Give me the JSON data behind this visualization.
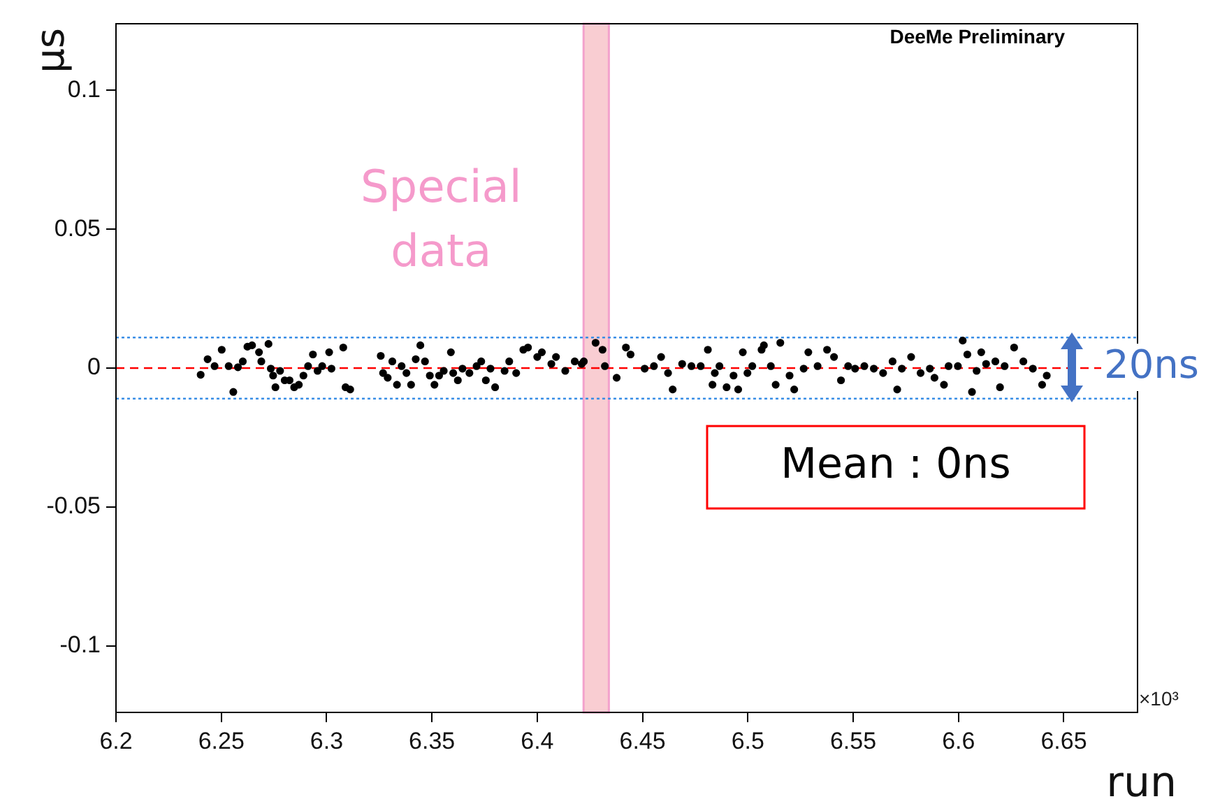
{
  "chart_data": {
    "type": "scatter",
    "xlabel": "run",
    "ylabel": "μs",
    "xlim": [
      6.2,
      6.685
    ],
    "xticks": [
      6.2,
      6.25,
      6.3,
      6.35,
      6.4,
      6.45,
      6.5,
      6.55,
      6.6,
      6.65
    ],
    "ylim": [
      -0.124,
      0.124
    ],
    "yticks": [
      -0.1,
      -0.05,
      0,
      0.05,
      0.1
    ],
    "grid": false,
    "legend": false,
    "marker": "circle",
    "series": [
      {
        "color": "#000000",
        "x": [
          6.2402,
          6.2435,
          6.2468,
          6.2502,
          6.2535,
          6.2557,
          6.2579,
          6.2602,
          6.2624,
          6.2646,
          6.2679,
          6.269,
          6.2724,
          6.2735,
          6.2746,
          6.2757,
          6.2779,
          6.2801,
          6.2824,
          6.2846,
          6.2868,
          6.289,
          6.2912,
          6.2935,
          6.2957,
          6.2979,
          6.3012,
          6.3023,
          6.3079,
          6.309,
          6.3112,
          6.3257,
          6.3268,
          6.329,
          6.3312,
          6.3334,
          6.3356,
          6.3379,
          6.3401,
          6.3423,
          6.3445,
          6.3467,
          6.349,
          6.3512,
          6.3534,
          6.3556,
          6.359,
          6.3601,
          6.3623,
          6.3645,
          6.3678,
          6.3712,
          6.3734,
          6.3756,
          6.3778,
          6.38,
          6.3845,
          6.3867,
          6.39,
          6.3934,
          6.3956,
          6.4,
          6.4022,
          6.4067,
          6.4089,
          6.4133,
          6.4178,
          6.4211,
          6.4221,
          6.4277,
          6.431,
          6.4321,
          6.4377,
          6.4421,
          6.4443,
          6.451,
          6.4554,
          6.4588,
          6.4621,
          6.4643,
          6.4688,
          6.4732,
          6.4776,
          6.481,
          6.4832,
          6.4843,
          6.4865,
          6.4899,
          6.4932,
          6.4954,
          6.4976,
          6.4998,
          6.5021,
          6.5065,
          6.5076,
          6.5109,
          6.5132,
          6.5154,
          6.5198,
          6.522,
          6.5265,
          6.5287,
          6.5331,
          6.5376,
          6.5409,
          6.5442,
          6.5476,
          6.5509,
          6.5553,
          6.5598,
          6.5642,
          6.5687,
          6.5709,
          6.5731,
          6.5775,
          6.582,
          6.5864,
          6.5886,
          6.5931,
          6.5953,
          6.5997,
          6.602,
          6.6042,
          6.6064,
          6.6086,
          6.6108,
          6.6131,
          6.6175,
          6.6197,
          6.6219,
          6.6264,
          6.6308,
          6.6353,
          6.6397,
          6.6419
        ],
        "values": [
          -0.0024,
          0.0032,
          0.0007,
          0.0066,
          0.0007,
          -0.0086,
          0.0003,
          0.0024,
          0.0077,
          0.0082,
          0.0057,
          0.0024,
          0.0087,
          -0.0002,
          -0.0027,
          -0.0069,
          -0.001,
          -0.0044,
          -0.0044,
          -0.0069,
          -0.006,
          -0.0027,
          0.0007,
          0.0049,
          -0.001,
          0.0007,
          0.0057,
          -0.0002,
          0.0074,
          -0.0069,
          -0.0077,
          0.0044,
          -0.0018,
          -0.0035,
          0.0024,
          -0.006,
          0.0007,
          -0.0018,
          -0.006,
          0.0032,
          0.0082,
          0.0024,
          -0.0027,
          -0.006,
          -0.0027,
          -0.001,
          0.0057,
          -0.0018,
          -0.0044,
          -0.0002,
          -0.0018,
          0.0007,
          0.0024,
          -0.0044,
          -0.0002,
          -0.0069,
          -0.001,
          0.0024,
          -0.0018,
          0.0066,
          0.0074,
          0.004,
          0.0057,
          0.0015,
          0.004,
          -0.001,
          0.0024,
          0.0015,
          0.0024,
          0.0091,
          0.0066,
          0.0007,
          -0.0035,
          0.0074,
          0.0049,
          -0.0002,
          0.0007,
          0.004,
          -0.0018,
          -0.0077,
          0.0015,
          0.0007,
          0.0007,
          0.0066,
          -0.006,
          -0.0018,
          0.0007,
          -0.0069,
          -0.0027,
          -0.0077,
          0.0057,
          -0.0018,
          0.0007,
          0.0066,
          0.0082,
          0.0007,
          -0.006,
          0.0091,
          -0.0027,
          -0.0077,
          -0.0002,
          0.0057,
          0.0007,
          0.0066,
          0.004,
          -0.0044,
          0.0007,
          -0.0002,
          0.0007,
          -0.0002,
          -0.0018,
          0.0024,
          -0.0077,
          -0.0002,
          0.004,
          -0.0018,
          -0.0002,
          -0.0035,
          -0.006,
          0.0007,
          0.0007,
          0.0099,
          0.0049,
          -0.0086,
          -0.001,
          0.0057,
          0.0015,
          0.0024,
          -0.0069,
          0.0007,
          0.0074,
          0.0024,
          -0.0002,
          -0.006,
          -0.0027
        ]
      }
    ],
    "ref_lines": [
      {
        "axis": "y",
        "value": 0,
        "label": "Mean : 0ns",
        "color": "#ff0000",
        "line_style": "dashed"
      },
      {
        "axis": "y",
        "value": 0.011,
        "color": "#3a8ee6",
        "line_style": "dotted"
      },
      {
        "axis": "y",
        "value": -0.011,
        "color": "#3a8ee6",
        "line_style": "dotted"
      }
    ],
    "bands": [
      {
        "axis": "x",
        "from": 6.422,
        "to": 6.434,
        "label": "Special data",
        "color": "#f9cdd2"
      }
    ],
    "annotations": [
      "DeeMe Preliminary",
      "×10³",
      "20ns"
    ]
  }
}
